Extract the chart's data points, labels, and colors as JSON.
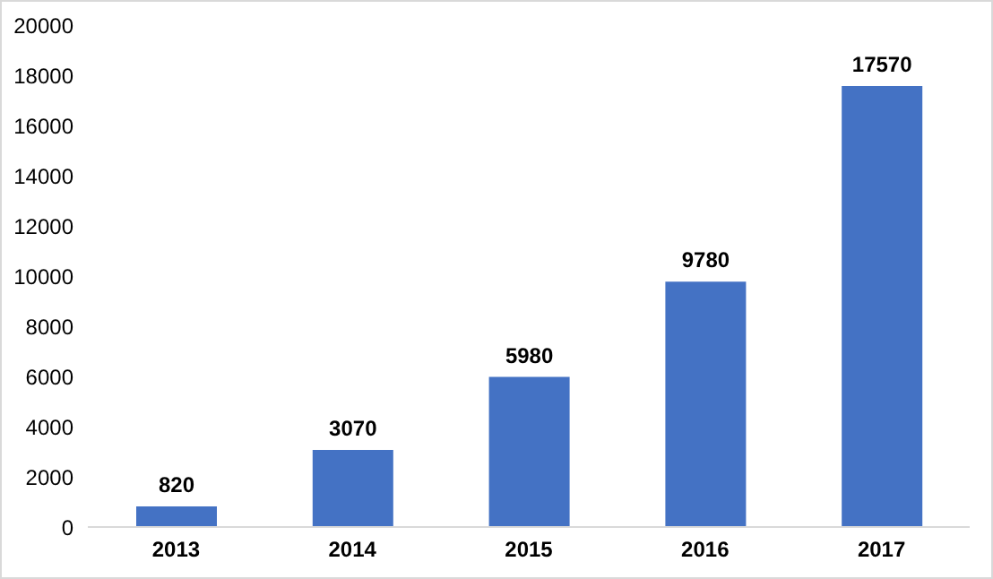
{
  "chart_data": {
    "type": "bar",
    "categories": [
      "2013",
      "2014",
      "2015",
      "2016",
      "2017"
    ],
    "values": [
      820,
      3070,
      5980,
      9780,
      17570
    ],
    "color": "#4472c4",
    "ylim": [
      0,
      20000
    ],
    "yticks": [
      0,
      2000,
      4000,
      6000,
      8000,
      10000,
      12000,
      14000,
      16000,
      18000,
      20000
    ],
    "grid": false,
    "data_labels": true
  }
}
